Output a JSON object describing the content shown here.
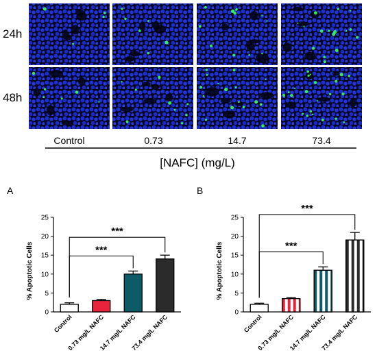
{
  "micrograph_panel": {
    "rows": [
      "24h",
      "48h"
    ],
    "conditions": [
      "Control",
      "0.73",
      "14.7",
      "73.4"
    ],
    "axis_title": "[NAFC] (mg/L)",
    "colors": {
      "nuclei": "#1a2fd0",
      "apoptotic": "#3cff5a",
      "background": "#050520"
    }
  },
  "chart_data": [
    {
      "panel": "A",
      "type": "bar",
      "categories": [
        "Control",
        "0.73 mg/L NAFC",
        "14.7 mg/L NAFC",
        "73.4 mg/L NAFC"
      ],
      "values": [
        2.0,
        3.0,
        10.0,
        14.0
      ],
      "errors": [
        0.4,
        0.3,
        0.8,
        1.0
      ],
      "ylabel": "% Apoptotic Cells",
      "ylim": [
        0,
        25
      ],
      "yticks": [
        0,
        5,
        10,
        15,
        20,
        25
      ],
      "bar_colors": [
        "#ffffff",
        "#e8243c",
        "#0e5a66",
        "#2b2b2b"
      ],
      "bar_patterns": [
        "solid",
        "solid",
        "solid",
        "solid"
      ],
      "significance": [
        {
          "from": 0,
          "to": 2,
          "label": "***"
        },
        {
          "from": 0,
          "to": 3,
          "label": "***"
        }
      ]
    },
    {
      "panel": "B",
      "type": "bar",
      "categories": [
        "Control",
        "0.73 mg/L NAFC",
        "14.7 mg/L NAFC",
        "73.4 mg/L NAFC"
      ],
      "values": [
        2.0,
        3.5,
        11.0,
        19.0
      ],
      "errors": [
        0.3,
        0.3,
        0.9,
        2.0
      ],
      "ylabel": "% Apoptotic Cells",
      "ylim": [
        0,
        25
      ],
      "yticks": [
        0,
        5,
        10,
        15,
        20,
        25
      ],
      "bar_colors": [
        "#ffffff",
        "#e8243c",
        "#0e5a66",
        "#2b2b2b"
      ],
      "bar_patterns": [
        "solid",
        "striped",
        "striped",
        "striped"
      ],
      "significance": [
        {
          "from": 0,
          "to": 2,
          "label": "***"
        },
        {
          "from": 0,
          "to": 3,
          "label": "***"
        }
      ]
    }
  ]
}
